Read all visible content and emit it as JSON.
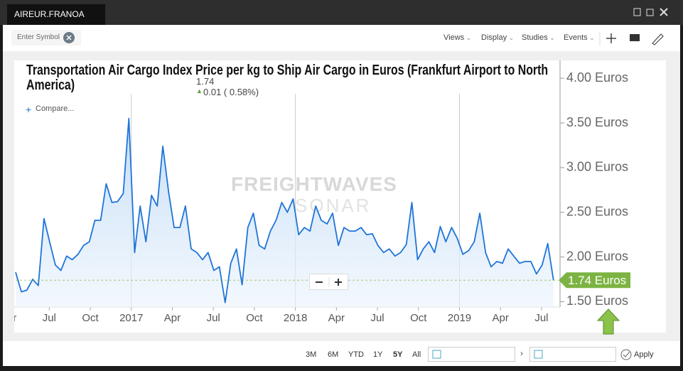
{
  "tab": "AIREUR.FRANOA",
  "symbol_placeholder": "Enter Symbol",
  "menus": [
    "Views",
    "Display",
    "Studies",
    "Events"
  ],
  "compare": "Compare...",
  "price": {
    "last": "1.74",
    "change": "0.01 ( 0.58%)"
  },
  "chart_data": {
    "type": "line",
    "title": "Transportation Air Cargo Index Price per kg to Ship Air Cargo in Euros (Frankfurt Airport to North America)",
    "watermark": [
      "FREIGHTWAVES",
      "SONAR"
    ],
    "x": [
      2016.295,
      2016.33,
      2016.364,
      2016.399,
      2016.433,
      2016.468,
      2016.502,
      2016.537,
      2016.571,
      2016.606,
      2016.64,
      2016.675,
      2016.709,
      2016.744,
      2016.778,
      2016.813,
      2016.847,
      2016.882,
      2016.916,
      2016.951,
      2016.985,
      2017.02,
      2017.054,
      2017.089,
      2017.123,
      2017.158,
      2017.192,
      2017.227,
      2017.261,
      2017.296,
      2017.33,
      2017.365,
      2017.399,
      2017.434,
      2017.468,
      2017.503,
      2017.537,
      2017.572,
      2017.606,
      2017.641,
      2017.675,
      2017.71,
      2017.744,
      2017.779,
      2017.813,
      2017.848,
      2017.882,
      2017.917,
      2017.951,
      2017.986,
      2018.02,
      2018.055,
      2018.089,
      2018.124,
      2018.158,
      2018.193,
      2018.227,
      2018.262,
      2018.296,
      2018.331,
      2018.365,
      2018.4,
      2018.434,
      2018.469,
      2018.503,
      2018.538,
      2018.572,
      2018.607,
      2018.641,
      2018.676,
      2018.71,
      2018.745,
      2018.779,
      2018.814,
      2018.848,
      2018.883,
      2018.917,
      2018.952,
      2018.986,
      2019.021,
      2019.055,
      2019.09,
      2019.124,
      2019.159,
      2019.193,
      2019.228,
      2019.262,
      2019.297,
      2019.331,
      2019.366,
      2019.4,
      2019.435,
      2019.469,
      2019.504,
      2019.538,
      2019.573
    ],
    "values": [
      1.83,
      1.61,
      1.63,
      1.75,
      1.68,
      2.43,
      2.17,
      1.91,
      1.85,
      2.01,
      1.97,
      2.03,
      2.13,
      2.17,
      2.41,
      2.41,
      2.82,
      2.61,
      2.62,
      2.71,
      3.55,
      2.05,
      2.57,
      2.17,
      2.69,
      2.57,
      3.24,
      2.73,
      2.33,
      2.33,
      2.57,
      2.09,
      2.05,
      1.97,
      2.05,
      1.85,
      1.89,
      1.49,
      1.93,
      2.09,
      1.69,
      2.33,
      2.49,
      2.13,
      2.09,
      2.29,
      2.41,
      2.61,
      2.5,
      2.65,
      2.25,
      2.33,
      2.29,
      2.57,
      2.41,
      2.37,
      2.49,
      2.13,
      2.33,
      2.29,
      2.29,
      2.33,
      2.25,
      2.26,
      2.13,
      2.05,
      2.09,
      2.01,
      2.05,
      2.14,
      2.61,
      1.97,
      2.09,
      2.17,
      2.05,
      2.34,
      2.17,
      2.33,
      2.21,
      2.03,
      2.07,
      2.17,
      2.49,
      2.05,
      1.89,
      1.95,
      1.93,
      2.09,
      2.01,
      1.93,
      1.95,
      1.95,
      1.81,
      1.91,
      2.15,
      1.74
    ],
    "color": "#1f74d8",
    "xlim": [
      2016.295,
      2019.6
    ],
    "xticks": [
      {
        "value": 2016.25,
        "label": "Apr"
      },
      {
        "value": 2016.5,
        "label": "Jul"
      },
      {
        "value": 2016.75,
        "label": "Oct"
      },
      2017,
      {
        "value": 2017.25,
        "label": "Apr"
      },
      {
        "value": 2017.5,
        "label": "Jul"
      },
      {
        "value": 2017.75,
        "label": "Oct"
      },
      2018,
      {
        "value": 2018.25,
        "label": "Apr"
      },
      {
        "value": 2018.5,
        "label": "Jul"
      },
      {
        "value": 2018.75,
        "label": "Oct"
      },
      2019,
      {
        "value": 2019.25,
        "label": "Apr"
      },
      {
        "value": 2019.5,
        "label": "Jul"
      }
    ],
    "ylim": [
      1.44,
      4.2
    ],
    "yticks": [
      {
        "value": 1.5,
        "label": "1.50 Euros"
      },
      {
        "value": 2,
        "label": "2.00 Euros"
      },
      {
        "value": 2.5,
        "label": "2.50 Euros"
      },
      {
        "value": 3,
        "label": "3.00 Euros"
      },
      {
        "value": 3.5,
        "label": "3.50 Euros"
      },
      {
        "value": 4,
        "label": "4.00 Euros"
      }
    ],
    "last_label": {
      "value": 1.74,
      "label": "1.74 Euros"
    },
    "last_color": "#7cb342"
  },
  "ranges": [
    "3M",
    "6M",
    "YTD",
    "1Y",
    "5Y",
    "All"
  ],
  "apply": "Apply"
}
